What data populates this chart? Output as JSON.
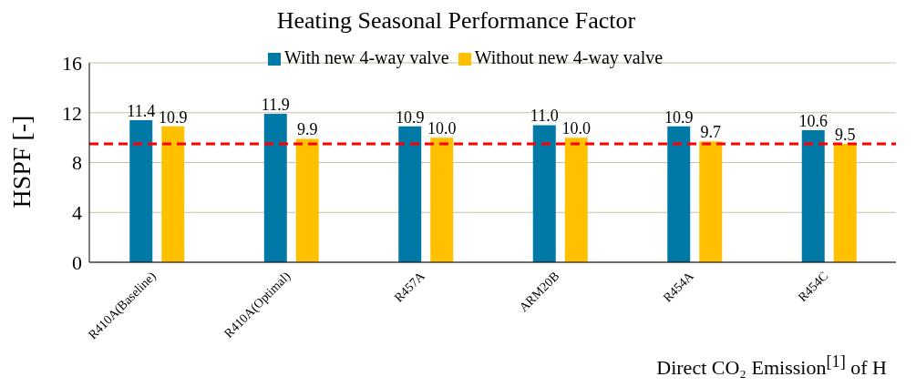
{
  "chart_data": {
    "type": "bar",
    "title": "Heating Seasonal Performance Factor",
    "ylabel": "HSPF [-]",
    "categories": [
      "R410A(Baseline)",
      "R410A(Optimal)",
      "R457A",
      "ARM20B",
      "R454A",
      "R454C"
    ],
    "series": [
      {
        "name": "With new 4-way valve",
        "color": "#0079a6",
        "values": [
          11.4,
          11.9,
          10.9,
          11.0,
          10.9,
          10.6
        ],
        "value_labels": [
          "11.4",
          "11.9",
          "10.9",
          "11.0",
          "10.9",
          "10.6"
        ]
      },
      {
        "name": "Without new 4-way valve",
        "color": "#ffc000",
        "values": [
          10.9,
          9.9,
          10.0,
          10.0,
          9.7,
          9.5
        ],
        "value_labels": [
          "10.9",
          "9.9",
          "10.0",
          "10.0",
          "9.7",
          "9.5"
        ]
      }
    ],
    "ylim": [
      0,
      16
    ],
    "yticks": [
      0,
      4,
      8,
      12,
      16
    ],
    "grid": "y",
    "legend": "top",
    "ref_lines": [
      {
        "axis": "y",
        "value": 9.5,
        "color": "#ff0000",
        "line_style": "dashed"
      }
    ],
    "annotations": [
      "Direct CO₂ Emission$^{[1]}$ of H"
    ]
  }
}
